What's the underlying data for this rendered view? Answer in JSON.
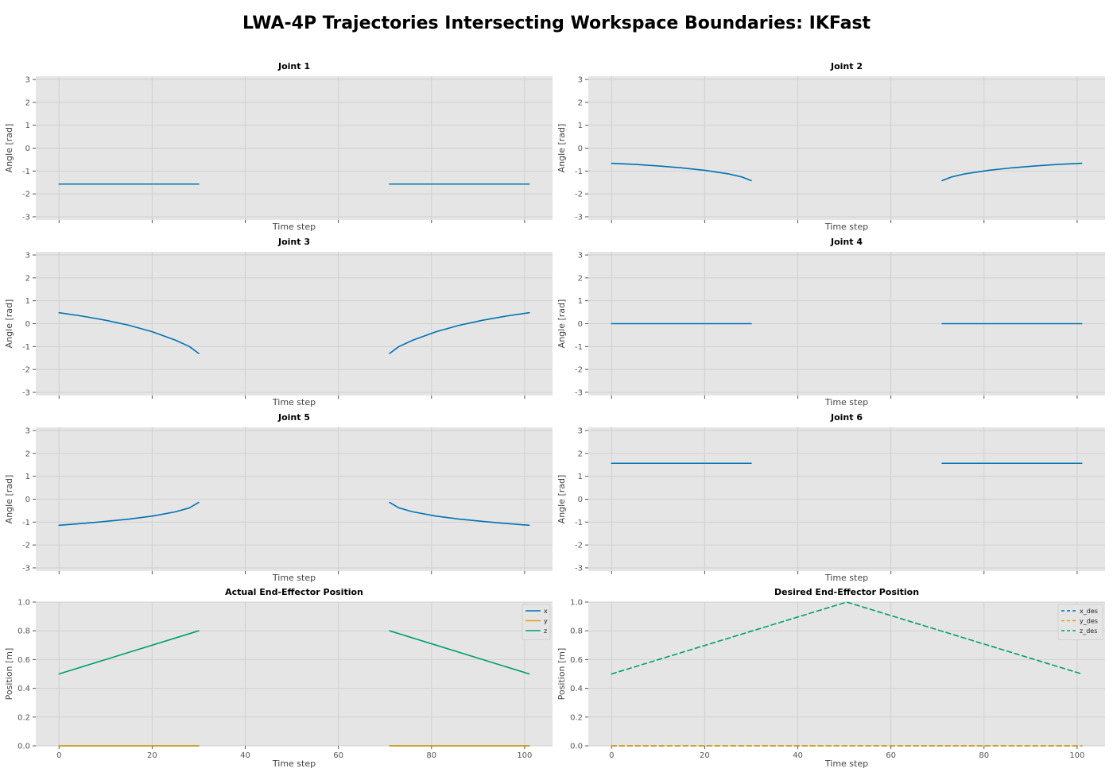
{
  "figure": {
    "title": "LWA-4P Trajectories Intersecting Workspace Boundaries: IKFast",
    "background_color": "#ffffff",
    "axes_background_color": "#e5e5e5",
    "grid_color": "#d0d0d0",
    "series_colors": {
      "blue": "#0072b2",
      "orange": "#e69f00",
      "green": "#009e73"
    }
  },
  "chart_data": [
    {
      "type": "line",
      "title": "Joint 1",
      "xlabel": "Time step",
      "ylabel": "Angle [rad]",
      "xlim": [
        -5,
        106
      ],
      "ylim": [
        -3.14,
        3.14
      ],
      "yticks": [
        -3,
        -2,
        -1,
        0,
        1,
        2,
        3
      ],
      "xticks": [
        0,
        20,
        40,
        60,
        80,
        100
      ],
      "show_xtick_labels": false,
      "grid": true,
      "series": [
        {
          "color": "#0072b2",
          "style": "solid",
          "segments": [
            {
              "x": [
                0,
                30
              ],
              "y": [
                -1.57,
                -1.57
              ]
            },
            {
              "x": [
                71,
                101
              ],
              "y": [
                -1.57,
                -1.57
              ]
            }
          ]
        }
      ]
    },
    {
      "type": "line",
      "title": "Joint 2",
      "xlabel": "Time step",
      "ylabel": "Angle [rad]",
      "xlim": [
        -5,
        106
      ],
      "ylim": [
        -3.14,
        3.14
      ],
      "yticks": [
        -3,
        -2,
        -1,
        0,
        1,
        2,
        3
      ],
      "xticks": [
        0,
        20,
        40,
        60,
        80,
        100
      ],
      "show_xtick_labels": false,
      "grid": true,
      "series": [
        {
          "color": "#0072b2",
          "style": "solid",
          "segments": [
            {
              "x": [
                0,
                5,
                10,
                15,
                20,
                25,
                28,
                30
              ],
              "y": [
                -0.66,
                -0.71,
                -0.78,
                -0.86,
                -0.97,
                -1.12,
                -1.26,
                -1.42
              ]
            },
            {
              "x": [
                71,
                73,
                76,
                81,
                86,
                91,
                96,
                101
              ],
              "y": [
                -1.42,
                -1.26,
                -1.12,
                -0.97,
                -0.86,
                -0.78,
                -0.71,
                -0.66
              ]
            }
          ]
        }
      ]
    },
    {
      "type": "line",
      "title": "Joint 3",
      "xlabel": "Time step",
      "ylabel": "Angle [rad]",
      "xlim": [
        -5,
        106
      ],
      "ylim": [
        -3.14,
        3.14
      ],
      "yticks": [
        -3,
        -2,
        -1,
        0,
        1,
        2,
        3
      ],
      "xticks": [
        0,
        20,
        40,
        60,
        80,
        100
      ],
      "show_xtick_labels": false,
      "grid": true,
      "series": [
        {
          "color": "#0072b2",
          "style": "solid",
          "segments": [
            {
              "x": [
                0,
                5,
                10,
                15,
                20,
                25,
                28,
                30
              ],
              "y": [
                0.48,
                0.33,
                0.15,
                -0.07,
                -0.35,
                -0.72,
                -1.0,
                -1.3
              ]
            },
            {
              "x": [
                71,
                73,
                76,
                81,
                86,
                91,
                96,
                101
              ],
              "y": [
                -1.3,
                -1.0,
                -0.72,
                -0.35,
                -0.07,
                0.15,
                0.33,
                0.48
              ]
            }
          ]
        }
      ]
    },
    {
      "type": "line",
      "title": "Joint 4",
      "xlabel": "Time step",
      "ylabel": "Angle [rad]",
      "xlim": [
        -5,
        106
      ],
      "ylim": [
        -3.14,
        3.14
      ],
      "yticks": [
        -3,
        -2,
        -1,
        0,
        1,
        2,
        3
      ],
      "xticks": [
        0,
        20,
        40,
        60,
        80,
        100
      ],
      "show_xtick_labels": false,
      "grid": true,
      "series": [
        {
          "color": "#0072b2",
          "style": "solid",
          "segments": [
            {
              "x": [
                0,
                30
              ],
              "y": [
                0,
                0
              ]
            },
            {
              "x": [
                71,
                101
              ],
              "y": [
                0,
                0
              ]
            }
          ]
        }
      ]
    },
    {
      "type": "line",
      "title": "Joint 5",
      "xlabel": "Time step",
      "ylabel": "Angle [rad]",
      "xlim": [
        -5,
        106
      ],
      "ylim": [
        -3.14,
        3.14
      ],
      "yticks": [
        -3,
        -2,
        -1,
        0,
        1,
        2,
        3
      ],
      "xticks": [
        0,
        20,
        40,
        60,
        80,
        100
      ],
      "show_xtick_labels": false,
      "grid": true,
      "series": [
        {
          "color": "#0072b2",
          "style": "solid",
          "segments": [
            {
              "x": [
                0,
                5,
                10,
                15,
                20,
                25,
                28,
                30
              ],
              "y": [
                -1.14,
                -1.06,
                -0.97,
                -0.87,
                -0.74,
                -0.55,
                -0.38,
                -0.14
              ]
            },
            {
              "x": [
                71,
                73,
                76,
                81,
                86,
                91,
                96,
                101
              ],
              "y": [
                -0.14,
                -0.38,
                -0.55,
                -0.74,
                -0.87,
                -0.97,
                -1.06,
                -1.14
              ]
            }
          ]
        }
      ]
    },
    {
      "type": "line",
      "title": "Joint 6",
      "xlabel": "Time step",
      "ylabel": "Angle [rad]",
      "xlim": [
        -5,
        106
      ],
      "ylim": [
        -3.14,
        3.14
      ],
      "yticks": [
        -3,
        -2,
        -1,
        0,
        1,
        2,
        3
      ],
      "xticks": [
        0,
        20,
        40,
        60,
        80,
        100
      ],
      "show_xtick_labels": false,
      "grid": true,
      "series": [
        {
          "color": "#0072b2",
          "style": "solid",
          "segments": [
            {
              "x": [
                0,
                30
              ],
              "y": [
                1.57,
                1.57
              ]
            },
            {
              "x": [
                71,
                101
              ],
              "y": [
                1.57,
                1.57
              ]
            }
          ]
        }
      ]
    },
    {
      "type": "line",
      "title": "Actual End-Effector Position",
      "xlabel": "Time step",
      "ylabel": "Position [m]",
      "xlim": [
        -5,
        106
      ],
      "ylim": [
        0,
        1.0
      ],
      "yticks": [
        0.0,
        0.2,
        0.4,
        0.6,
        0.8,
        1.0
      ],
      "xticks": [
        0,
        20,
        40,
        60,
        80,
        100
      ],
      "show_xtick_labels": true,
      "grid": true,
      "legend": "top-right",
      "series": [
        {
          "name": "x",
          "color": "#0072b2",
          "style": "solid",
          "segments": [
            {
              "x": [
                0,
                30
              ],
              "y": [
                0,
                0
              ]
            },
            {
              "x": [
                71,
                101
              ],
              "y": [
                0,
                0
              ]
            }
          ]
        },
        {
          "name": "y",
          "color": "#e69f00",
          "style": "solid",
          "segments": [
            {
              "x": [
                0,
                30
              ],
              "y": [
                0,
                0
              ]
            },
            {
              "x": [
                71,
                101
              ],
              "y": [
                0,
                0
              ]
            }
          ]
        },
        {
          "name": "z",
          "color": "#009e73",
          "style": "solid",
          "segments": [
            {
              "x": [
                0,
                30
              ],
              "y": [
                0.5,
                0.8
              ]
            },
            {
              "x": [
                71,
                101
              ],
              "y": [
                0.8,
                0.5
              ]
            }
          ]
        }
      ]
    },
    {
      "type": "line",
      "title": "Desired End-Effector Position",
      "xlabel": "Time step",
      "ylabel": "Position [m]",
      "xlim": [
        -5,
        106
      ],
      "ylim": [
        0,
        1.0
      ],
      "yticks": [
        0.0,
        0.2,
        0.4,
        0.6,
        0.8,
        1.0
      ],
      "xticks": [
        0,
        20,
        40,
        60,
        80,
        100
      ],
      "show_xtick_labels": true,
      "grid": true,
      "legend": "top-right",
      "series": [
        {
          "name": "x_des",
          "color": "#0072b2",
          "style": "dashed",
          "segments": [
            {
              "x": [
                0,
                101
              ],
              "y": [
                0,
                0
              ]
            }
          ]
        },
        {
          "name": "y_des",
          "color": "#e69f00",
          "style": "dashed",
          "segments": [
            {
              "x": [
                0,
                101
              ],
              "y": [
                0,
                0
              ]
            }
          ]
        },
        {
          "name": "z_des",
          "color": "#009e73",
          "style": "dashed",
          "segments": [
            {
              "x": [
                0,
                50.5,
                101
              ],
              "y": [
                0.5,
                1.0,
                0.5
              ]
            }
          ]
        }
      ]
    }
  ]
}
